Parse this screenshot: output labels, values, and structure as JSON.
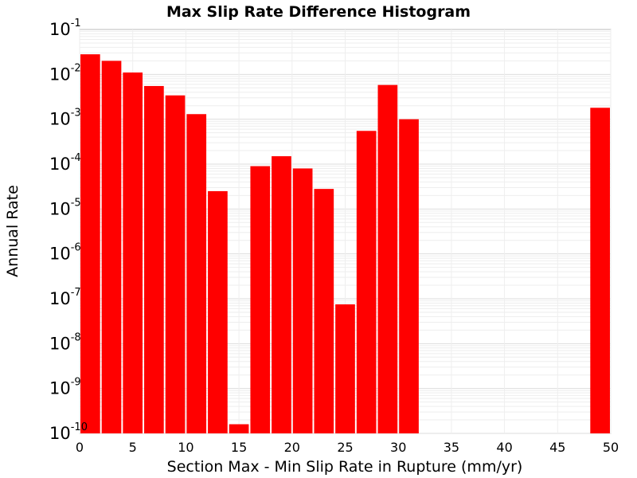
{
  "chart_data": {
    "type": "bar",
    "title": "Max Slip Rate Difference Histogram",
    "xlabel": "Section Max - Min Slip Rate in Rupture (mm/yr)",
    "ylabel": "Annual Rate",
    "xlim": [
      0,
      50
    ],
    "ylim": [
      1e-10,
      0.1
    ],
    "yscale": "log",
    "grid": true,
    "bar_width": 2,
    "bar_color": "#ff0000",
    "x_ticks": [
      0,
      5,
      10,
      15,
      20,
      25,
      30,
      35,
      40,
      45,
      50
    ],
    "y_ticks": [
      {
        "base": "10",
        "exp": "-1",
        "value": 0.1
      },
      {
        "base": "10",
        "exp": "-2",
        "value": 0.01
      },
      {
        "base": "10",
        "exp": "-3",
        "value": 0.001
      },
      {
        "base": "10",
        "exp": "-4",
        "value": 0.0001
      },
      {
        "base": "10",
        "exp": "-5",
        "value": 1e-05
      },
      {
        "base": "10",
        "exp": "-6",
        "value": 1e-06
      },
      {
        "base": "10",
        "exp": "-7",
        "value": 1e-07
      },
      {
        "base": "10",
        "exp": "-8",
        "value": 1e-08
      },
      {
        "base": "10",
        "exp": "-9",
        "value": 1e-09
      },
      {
        "base": "10",
        "exp": "-10",
        "value": 1e-10
      }
    ],
    "x": [
      1,
      3,
      5,
      7,
      9,
      11,
      13,
      15,
      17,
      19,
      21,
      23,
      25,
      27,
      29,
      31,
      49
    ],
    "values": [
      0.028,
      0.02,
      0.011,
      0.0055,
      0.0034,
      0.0013,
      2.5e-05,
      1.6e-10,
      9e-05,
      0.00015,
      8e-05,
      2.8e-05,
      7.5e-08,
      0.00055,
      0.0058,
      0.001,
      0.0018
    ]
  }
}
